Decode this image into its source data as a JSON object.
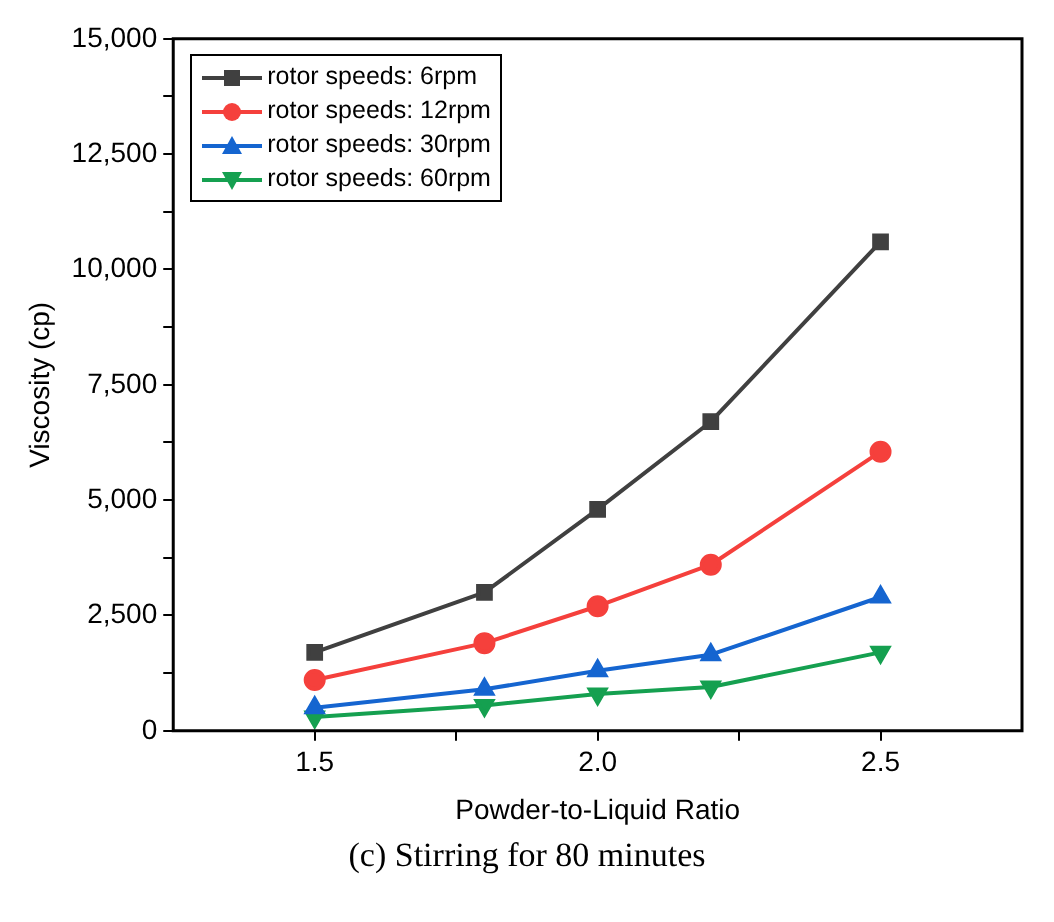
{
  "chart_data": {
    "type": "line",
    "xlabel": "Powder-to-Liquid Ratio",
    "ylabel": "Viscosity (cp)",
    "annotations": [
      "(c) Stirring for 80 minutes"
    ],
    "x": [
      1.5,
      1.8,
      2.0,
      2.2,
      2.5
    ],
    "series": [
      {
        "name": "rotor speeds: 6rpm",
        "color": "#404040",
        "marker": "square",
        "values": [
          1700,
          3000,
          4800,
          6700,
          10600
        ]
      },
      {
        "name": "rotor speeds: 12rpm",
        "color": "#f5403c",
        "marker": "circle",
        "values": [
          1100,
          1900,
          2700,
          3600,
          6050
        ]
      },
      {
        "name": "rotor speeds: 30rpm",
        "color": "#1565d0",
        "marker": "triangle",
        "values": [
          500,
          900,
          1300,
          1650,
          2900
        ]
      },
      {
        "name": "rotor speeds: 60rpm",
        "color": "#15a050",
        "marker": "triangle-down",
        "values": [
          300,
          550,
          800,
          950,
          1700
        ]
      }
    ],
    "xlim": [
      1.25,
      2.75
    ],
    "xticks": [
      1.5,
      {
        "value": 1.75,
        "label": null
      },
      "2.0",
      {
        "value": 2.25,
        "label": null
      },
      2.5
    ],
    "ylim": [
      0,
      15000
    ],
    "yticks": [
      {
        "value": 0,
        "label": "0"
      },
      {
        "value": 1250,
        "label": null
      },
      {
        "value": 2500,
        "label": "2,500"
      },
      {
        "value": 3750,
        "label": null
      },
      {
        "value": 5000,
        "label": "5,000"
      },
      {
        "value": 6250,
        "label": null
      },
      {
        "value": 7500,
        "label": "7,500"
      },
      {
        "value": 8750,
        "label": null
      },
      {
        "value": 10000,
        "label": "10,000"
      },
      {
        "value": 11250,
        "label": null
      },
      {
        "value": 12500,
        "label": "12,500"
      },
      {
        "value": 13750,
        "label": null
      },
      {
        "value": 15000,
        "label": "15,000"
      }
    ],
    "grid": false,
    "legend": "top left",
    "line_style": "solid"
  }
}
